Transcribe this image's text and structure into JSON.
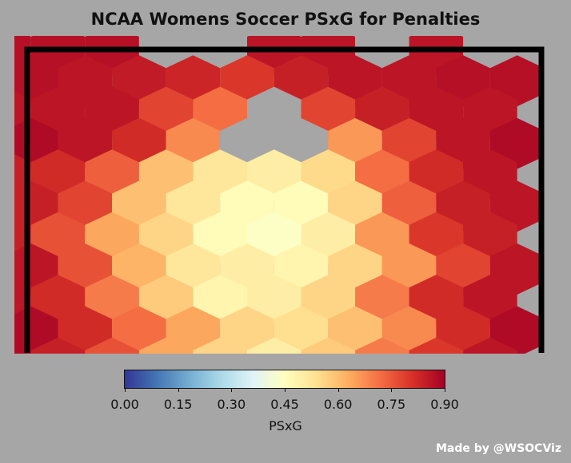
{
  "chart_data": {
    "type": "heatmap",
    "title": "NCAA Womens Soccer PSxG for Penalties",
    "colorbar": {
      "label": "PSxG",
      "range": [
        0.0,
        0.9
      ],
      "ticks": [
        "0.00",
        "0.15",
        "0.30",
        "0.45",
        "0.60",
        "0.75",
        "0.90"
      ],
      "colors": [
        "#313695",
        "#4575b4",
        "#74add1",
        "#abd9e9",
        "#e0f3f8",
        "#ffffbf",
        "#fee090",
        "#fdae61",
        "#f46d43",
        "#d73027",
        "#a50026"
      ]
    },
    "missing_color": "#a6a6a6",
    "hex_rows": [
      {
        "row": 0,
        "values": [
          0.87,
          0.87,
          0.87,
          null,
          null,
          0.86,
          0.86,
          null,
          0.86,
          null
        ]
      },
      {
        "row": 1,
        "values": [
          0.87,
          0.86,
          0.85,
          0.83,
          0.8,
          0.84,
          0.86,
          0.86,
          0.87,
          0.87
        ]
      },
      {
        "row": 2,
        "values": [
          0.86,
          0.86,
          0.86,
          0.78,
          0.72,
          null,
          0.78,
          0.84,
          0.86,
          0.86
        ]
      },
      {
        "row": 3,
        "values": [
          0.88,
          0.86,
          0.82,
          0.68,
          null,
          null,
          0.66,
          0.78,
          0.86,
          0.88
        ]
      },
      {
        "row": 4,
        "values": [
          0.84,
          0.82,
          0.74,
          0.6,
          0.52,
          0.5,
          0.55,
          0.72,
          0.82,
          0.86
        ]
      },
      {
        "row": 5,
        "values": [
          0.84,
          0.78,
          0.6,
          0.52,
          0.46,
          0.46,
          0.56,
          0.74,
          0.84,
          0.86
        ]
      },
      {
        "row": 6,
        "values": [
          0.84,
          0.76,
          0.64,
          0.56,
          0.46,
          0.44,
          0.5,
          0.66,
          0.8,
          0.84
        ]
      },
      {
        "row": 7,
        "values": [
          0.86,
          0.76,
          0.62,
          0.52,
          0.5,
          0.48,
          0.56,
          0.66,
          0.78,
          0.86
        ]
      },
      {
        "row": 8,
        "values": [
          0.86,
          0.82,
          0.7,
          0.58,
          0.48,
          0.5,
          0.56,
          0.7,
          0.82,
          0.86
        ]
      },
      {
        "row": 9,
        "values": [
          0.88,
          0.82,
          0.72,
          0.64,
          0.56,
          0.54,
          0.6,
          0.68,
          0.82,
          0.88
        ]
      },
      {
        "row": 10,
        "values": [
          0.88,
          0.84,
          0.76,
          0.64,
          0.56,
          0.5,
          0.58,
          0.7,
          0.8,
          0.86
        ]
      },
      {
        "row": 11,
        "values": [
          0.88,
          0.82,
          0.74,
          0.64,
          0.56,
          0.5,
          0.56,
          0.66,
          0.8,
          0.86
        ]
      }
    ],
    "grid": false
  },
  "credit": "Made by @WSOCViz"
}
